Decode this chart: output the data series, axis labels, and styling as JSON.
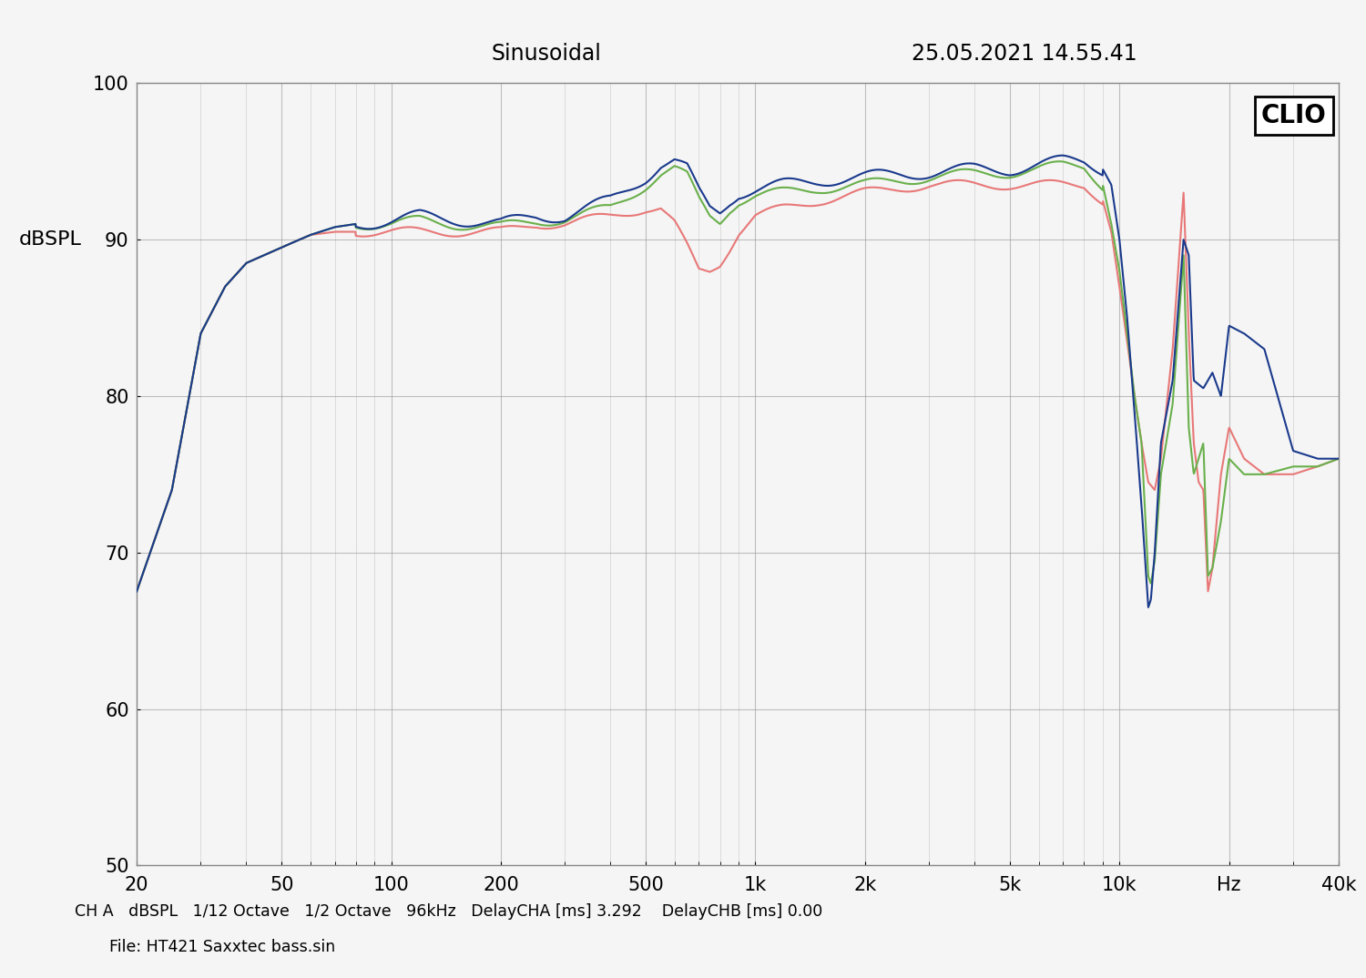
{
  "title_left": "Sinusoidal",
  "title_right": "25.05.2021 14.55.41",
  "ylabel": "dBSPL",
  "xlabel_ticks": [
    20,
    50,
    100,
    200,
    500,
    1000,
    2000,
    5000,
    10000,
    20000,
    40000
  ],
  "xlabel_labels": [
    "20",
    "50",
    "100",
    "200",
    "500",
    "1k",
    "2k",
    "5k",
    "10k",
    "Hz",
    "40k"
  ],
  "xmin": 20,
  "xmax": 40000,
  "ymin": 50,
  "ymax": 100,
  "yticks": [
    50,
    60,
    70,
    80,
    90,
    100
  ],
  "footer_line1": "CH A   dBSPL   1/12 Octave   1/2 Octave   96kHz   DelayCHA [ms] 3.292    DelayCHB [ms] 0.00",
  "footer_line2": "File: HT421 Saxxtec bass.sin",
  "clio_label": "CLIO",
  "color_blue": "#1a3a8c",
  "color_green": "#6ab04c",
  "color_pink": "#e87878",
  "background_color": "#f5f5f5",
  "grid_color": "#999999",
  "line_width": 1.5
}
